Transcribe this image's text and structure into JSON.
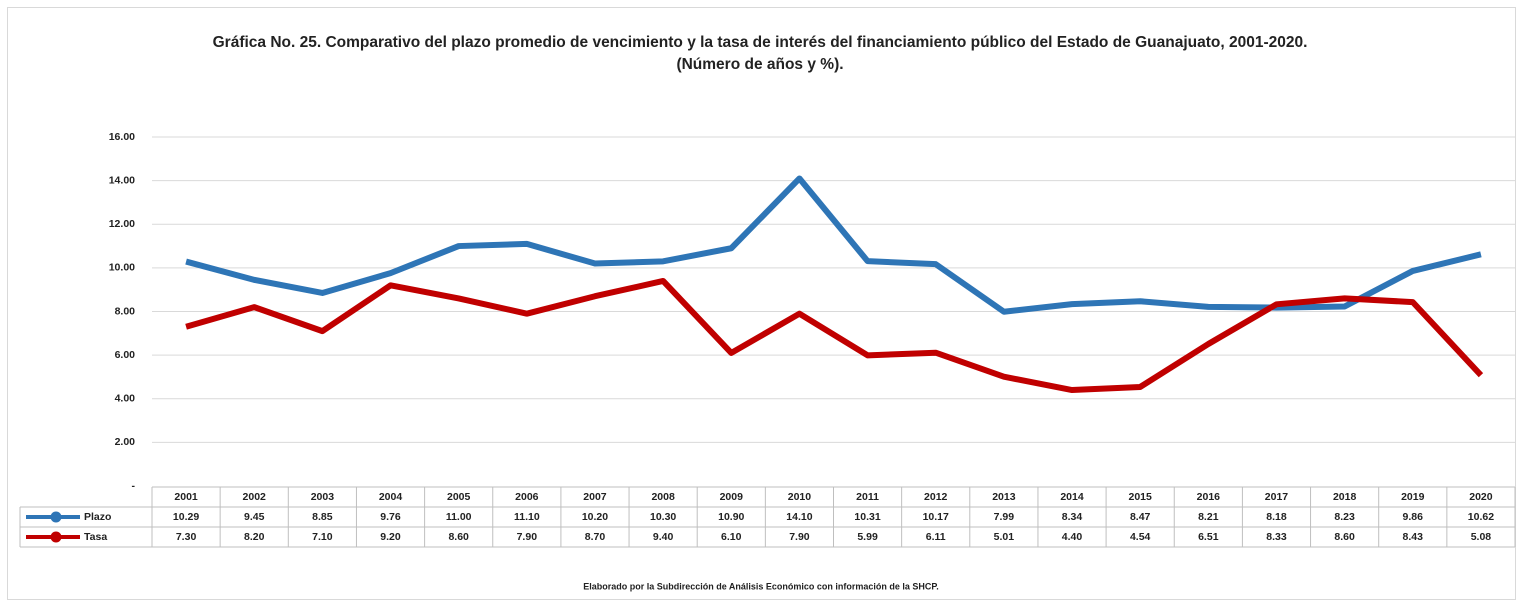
{
  "chart_data": {
    "type": "line",
    "title": "Gráfica No. 25. Comparativo del plazo promedio de vencimiento y la tasa de interés del financiamiento público del Estado de Guanajuato, 2001-2020. (Número de años y %).",
    "note": "Elaborado por la Subdirección de Análisis Económico con información de la SHCP.",
    "categories": [
      "2001",
      "2002",
      "2003",
      "2004",
      "2005",
      "2006",
      "2007",
      "2008",
      "2009",
      "2010",
      "2011",
      "2012",
      "2013",
      "2014",
      "2015",
      "2016",
      "2017",
      "2018",
      "2019",
      "2020"
    ],
    "series": [
      {
        "name": "Plazo",
        "color": "#2e75b6",
        "values": [
          10.29,
          9.45,
          8.85,
          9.76,
          11,
          11.1,
          10.2,
          10.3,
          10.9,
          14.1,
          10.31,
          10.17,
          7.99,
          8.34,
          8.47,
          8.21,
          8.18,
          8.23,
          9.86,
          10.62
        ],
        "value_labels": [
          "10.29",
          "9.45",
          "8.85",
          "9.76",
          "11.00",
          "11.10",
          "10.20",
          "10.30",
          "10.90",
          "14.10",
          "10.31",
          "10.17",
          "7.99",
          "8.34",
          "8.47",
          "8.21",
          "8.18",
          "8.23",
          "9.86",
          "10.62"
        ]
      },
      {
        "name": "Tasa",
        "color": "#c00000",
        "values": [
          7.3,
          8.2,
          7.1,
          9.2,
          8.6,
          7.9,
          8.7,
          9.4,
          6.1,
          7.9,
          5.99,
          6.11,
          5.01,
          4.4,
          4.54,
          6.51,
          8.33,
          8.6,
          8.43,
          5.08
        ],
        "value_labels": [
          "7.30",
          "8.20",
          "7.10",
          "9.20",
          "8.60",
          "7.90",
          "8.70",
          "9.40",
          "6.10",
          "7.90",
          "5.99",
          "6.11",
          "5.01",
          "4.40",
          "4.54",
          "6.51",
          "8.33",
          "8.60",
          "8.43",
          "5.08"
        ]
      }
    ],
    "ylim": [
      0,
      16
    ],
    "yticks": [
      {
        "value": 0,
        "label": "-"
      },
      {
        "value": 2,
        "label": "2.00"
      },
      {
        "value": 4,
        "label": "4.00"
      },
      {
        "value": 6,
        "label": "6.00"
      },
      {
        "value": 8,
        "label": "8.00"
      },
      {
        "value": 10,
        "label": "10.00"
      },
      {
        "value": 12,
        "label": "12.00"
      },
      {
        "value": 14,
        "label": "14.00"
      },
      {
        "value": 16,
        "label": "16.00"
      }
    ],
    "grid": true
  }
}
